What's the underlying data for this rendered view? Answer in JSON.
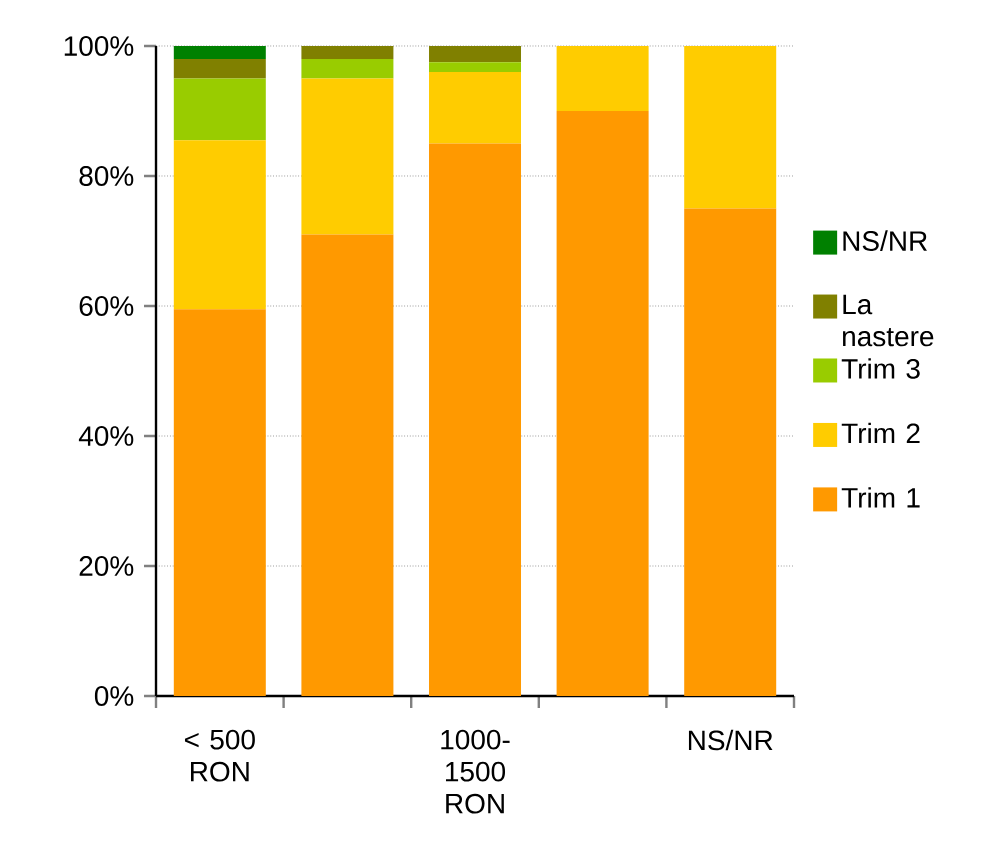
{
  "chart_data": {
    "type": "bar",
    "stacked": true,
    "categories": [
      "< 500 RON",
      null,
      "1000-1500 RON",
      null,
      "NS/NR"
    ],
    "series": [
      {
        "name": "Trim 1",
        "color": "#ff9900",
        "values": [
          59.5,
          71,
          85,
          90,
          75
        ]
      },
      {
        "name": "Trim 2",
        "color": "#ffcc00",
        "values": [
          26,
          24,
          11,
          10,
          25
        ]
      },
      {
        "name": "Trim 3",
        "color": "#99cc00",
        "values": [
          9.5,
          3,
          1.5,
          0,
          0
        ]
      },
      {
        "name": "La nastere",
        "color": "#808000",
        "values": [
          3,
          2,
          2.5,
          0,
          0
        ]
      },
      {
        "name": "NS/NR",
        "color": "#008000",
        "values": [
          2,
          0,
          0,
          0,
          0
        ]
      }
    ],
    "ylim": [
      0,
      100
    ],
    "yticks": [
      {
        "value": 0,
        "label": "0%"
      },
      {
        "value": 20,
        "label": "20%"
      },
      {
        "value": 40,
        "label": "40%"
      },
      {
        "value": 60,
        "label": "60%"
      },
      {
        "value": 80,
        "label": "80%"
      },
      {
        "value": 100,
        "label": "100%"
      }
    ],
    "grid": "y",
    "legend": "right"
  }
}
